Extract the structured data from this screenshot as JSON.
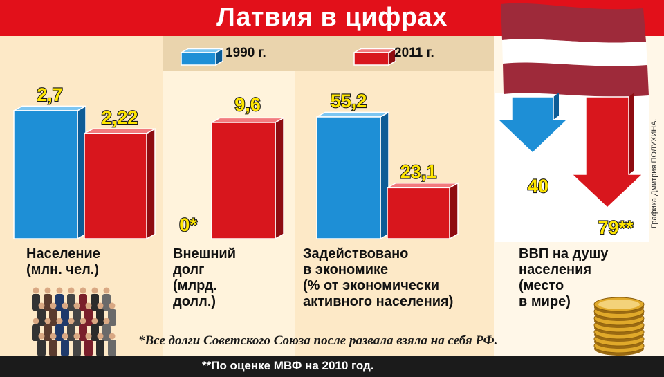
{
  "title": "Латвия в цифрах",
  "legend": [
    {
      "label": "1990 г.",
      "color": "#1e8fd6"
    },
    {
      "label": "2011 г.",
      "color": "#d8161d"
    }
  ],
  "colors": {
    "blue": "#1e8fd6",
    "red": "#d8161d",
    "title_bar": "#e2101a",
    "value_label": "#ffe600"
  },
  "chart_data": [
    {
      "type": "bar",
      "categories": [
        "1990 г.",
        "2011 г."
      ],
      "values": [
        2.7,
        2.22
      ],
      "value_labels": [
        "2,7",
        "2,22"
      ],
      "label": "Население\n(млн. чел.)"
    },
    {
      "type": "bar",
      "categories": [
        "1990 г.",
        "2011 г."
      ],
      "values": [
        0,
        9.6
      ],
      "value_labels": [
        "0*",
        "9,6"
      ],
      "label": "Внешний\nдолг\n(млрд.\nдолл.)"
    },
    {
      "type": "bar",
      "categories": [
        "1990 г.",
        "2011 г."
      ],
      "values": [
        55.2,
        23.1
      ],
      "value_labels": [
        "55,2",
        "23,1"
      ],
      "label": "Задействовано\nв экономике\n(% от экономически\nактивного населения)"
    },
    {
      "type": "bar",
      "categories": [
        "1990 г.",
        "2011 г."
      ],
      "values": [
        40,
        79
      ],
      "value_labels": [
        "40",
        "79**"
      ],
      "label": "ВВП на душу\nнаселения\n(место\nв мире)"
    }
  ],
  "footnote": "*Все долги Советского Союза после развала взяла на себя РФ.",
  "bottom_note": "**По оценке МВФ на 2010 год.",
  "credit": "Графика Дмитрия ПОЛУХИНА."
}
